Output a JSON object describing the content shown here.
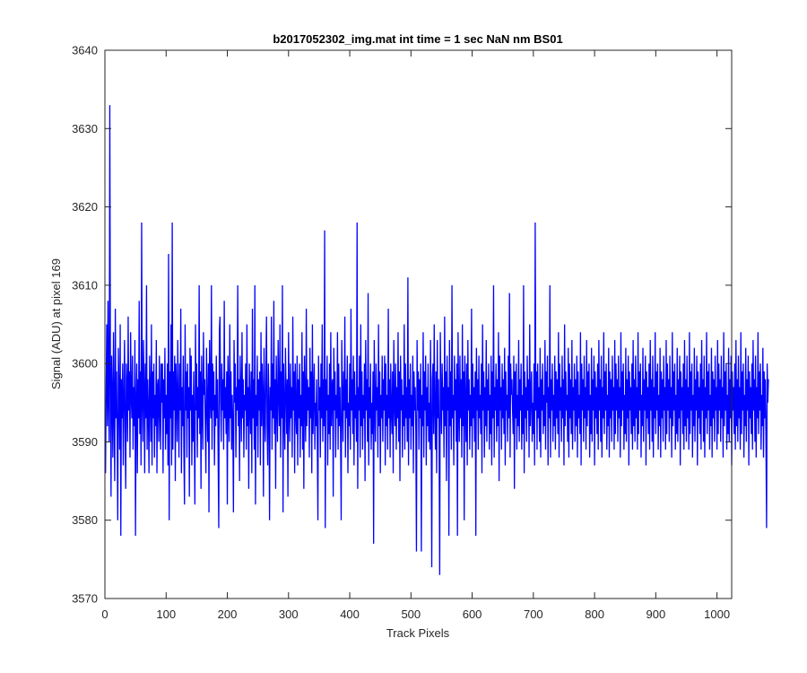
{
  "chart_data": {
    "type": "line",
    "title": "b2017052302_img.mat int time = 1 sec  NaN nm BS01",
    "xlabel": "Track Pixels",
    "ylabel": "Signal (ADU) at pixel 169",
    "xlim": [
      0,
      1024
    ],
    "ylim": [
      3570,
      3640
    ],
    "xticks": [
      0,
      100,
      200,
      300,
      400,
      500,
      600,
      700,
      800,
      900,
      1000
    ],
    "yticks": [
      3570,
      3580,
      3590,
      3600,
      3610,
      3620,
      3630,
      3640
    ],
    "grid": false,
    "legend": "none",
    "colors": {
      "line": "#0000ff",
      "axes": "#262626"
    },
    "series": [
      {
        "x_start": 1,
        "x_step": 1,
        "values": [
          3586,
          3597,
          3605,
          3592,
          3608,
          3595,
          3590,
          3633,
          3599,
          3583,
          3601,
          3596,
          3588,
          3604,
          3594,
          3585,
          3607,
          3593,
          3599,
          3591,
          3580,
          3602,
          3596,
          3589,
          3605,
          3578,
          3598,
          3593,
          3600,
          3587,
          3595,
          3603,
          3592,
          3584,
          3600,
          3597,
          3590,
          3606,
          3594,
          3599,
          3588,
          3604,
          3596,
          3593,
          3601,
          3589,
          3597,
          3592,
          3603,
          3578,
          3595,
          3600,
          3586,
          3598,
          3593,
          3608,
          3591,
          3599,
          3587,
          3618,
          3595,
          3590,
          3603,
          3597,
          3586,
          3600,
          3593,
          3610,
          3589,
          3598,
          3594,
          3586,
          3601,
          3596,
          3590,
          3605,
          3587,
          3599,
          3593,
          3600,
          3588,
          3596,
          3592,
          3603,
          3586,
          3597,
          3598,
          3590,
          3601,
          3594,
          3589,
          3600,
          3595,
          3600,
          3586,
          3598,
          3593,
          3602,
          3589,
          3596,
          3591,
          3600,
          3587,
          3614,
          3580,
          3599,
          3593,
          3605,
          3587,
          3618,
          3589,
          3599,
          3594,
          3601,
          3585,
          3600,
          3596,
          3590,
          3603,
          3595,
          3588,
          3600,
          3594,
          3607,
          3586,
          3597,
          3592,
          3601,
          3589,
          3582,
          3605,
          3594,
          3599,
          3588,
          3600,
          3593,
          3597,
          3583,
          3602,
          3594,
          3601,
          3587,
          3596,
          3590,
          3599,
          3592,
          3582,
          3605,
          3594,
          3600,
          3588,
          3597,
          3593,
          3610,
          3591,
          3599,
          3584,
          3601,
          3595,
          3589,
          3604,
          3596,
          3598,
          3592,
          3586,
          3602,
          3595,
          3590,
          3600,
          3581,
          3603,
          3596,
          3593,
          3610,
          3589,
          3600,
          3594,
          3599,
          3587,
          3596,
          3592,
          3601,
          3593,
          3598,
          3588,
          3579,
          3604,
          3606,
          3595,
          3590,
          3600,
          3594,
          3598,
          3589,
          3608,
          3593,
          3597,
          3591,
          3599,
          3582,
          3601,
          3596,
          3590,
          3605,
          3593,
          3599,
          3589,
          3596,
          3592,
          3581,
          3603,
          3595,
          3600,
          3588,
          3597,
          3594,
          3610,
          3592,
          3598,
          3585,
          3601,
          3596,
          3590,
          3604,
          3593,
          3598,
          3588,
          3596,
          3594,
          3600,
          3589,
          3605,
          3592,
          3597,
          3584,
          3600,
          3595,
          3591,
          3599,
          3586,
          3607,
          3593,
          3598,
          3589,
          3610,
          3582,
          3596,
          3592,
          3601,
          3588,
          3598,
          3594,
          3599,
          3587,
          3604,
          3592,
          3600,
          3596,
          3583,
          3602,
          3594,
          3590,
          3599,
          3606,
          3592,
          3587,
          3600,
          3595,
          3580,
          3597,
          3594,
          3606,
          3589,
          3600,
          3593,
          3608,
          3591,
          3598,
          3584,
          3601,
          3595,
          3590,
          3603,
          3596,
          3592,
          3605,
          3588,
          3599,
          3593,
          3610,
          3581,
          3600,
          3594,
          3589,
          3602,
          3597,
          3591,
          3598,
          3583,
          3604,
          3595,
          3590,
          3600,
          3593,
          3597,
          3588,
          3606,
          3594,
          3599,
          3586,
          3600,
          3594,
          3591,
          3601,
          3587,
          3598,
          3593,
          3600,
          3588,
          3596,
          3592,
          3604,
          3589,
          3599,
          3584,
          3601,
          3595,
          3590,
          3607,
          3592,
          3598,
          3594,
          3597,
          3588,
          3602,
          3593,
          3599,
          3586,
          3605,
          3591,
          3596,
          3600,
          3589,
          3595,
          3592,
          3598,
          3590,
          3580,
          3601,
          3594,
          3597,
          3588,
          3600,
          3593,
          3605,
          3590,
          3598,
          3592,
          3617,
          3579,
          3598,
          3594,
          3601,
          3587,
          3596,
          3591,
          3600,
          3589,
          3604,
          3592,
          3597,
          3598,
          3583,
          3602,
          3594,
          3599,
          3588,
          3596,
          3593,
          3604,
          3589,
          3600,
          3592,
          3597,
          3591,
          3580,
          3603,
          3596,
          3590,
          3599,
          3594,
          3606,
          3588,
          3598,
          3593,
          3601,
          3586,
          3595,
          3592,
          3600,
          3589,
          3607,
          3594,
          3598,
          3591,
          3601,
          3587,
          3599,
          3593,
          3596,
          3590,
          3618,
          3584,
          3597,
          3594,
          3601,
          3588,
          3605,
          3592,
          3599,
          3589,
          3596,
          3593,
          3600,
          3585,
          3603,
          3594,
          3598,
          3590,
          3609,
          3587,
          3597,
          3593,
          3600,
          3589,
          3595,
          3591,
          3599,
          3577,
          3603,
          3595,
          3590,
          3600,
          3594,
          3597,
          3588,
          3605,
          3592,
          3599,
          3586,
          3596,
          3593,
          3601,
          3590,
          3598,
          3594,
          3601,
          3587,
          3600,
          3592,
          3596,
          3589,
          3607,
          3593,
          3598,
          3588,
          3600,
          3594,
          3591,
          3599,
          3586,
          3603,
          3595,
          3592,
          3600,
          3589,
          3597,
          3593,
          3604,
          3590,
          3599,
          3585,
          3601,
          3594,
          3598,
          3588,
          3596,
          3592,
          3605,
          3589,
          3600,
          3593,
          3597,
          3590,
          3611,
          3587,
          3598,
          3593,
          3600,
          3589,
          3596,
          3592,
          3601,
          3586,
          3599,
          3594,
          3597,
          3591,
          3576,
          3603,
          3594,
          3599,
          3589,
          3598,
          3593,
          3600,
          3576,
          3596,
          3592,
          3604,
          3588,
          3599,
          3594,
          3601,
          3587,
          3597,
          3592,
          3600,
          3590,
          3595,
          3589,
          3603,
          3593,
          3574,
          3598,
          3600,
          3591,
          3605,
          3594,
          3589,
          3599,
          3586,
          3603,
          3593,
          3598,
          3590,
          3573,
          3604,
          3596,
          3591,
          3600,
          3594,
          3597,
          3588,
          3606,
          3592,
          3599,
          3585,
          3601,
          3594,
          3597,
          3578,
          3603,
          3592,
          3599,
          3589,
          3610,
          3593,
          3596,
          3587,
          3601,
          3594,
          3598,
          3590,
          3600,
          3578,
          3604,
          3595,
          3590,
          3601,
          3593,
          3598,
          3588,
          3605,
          3592,
          3599,
          3580,
          3601,
          3595,
          3590,
          3600,
          3587,
          3603,
          3594,
          3598,
          3589,
          3596,
          3592,
          3607,
          3588,
          3600,
          3593,
          3597,
          3590,
          3599,
          3578,
          3602,
          3594,
          3598,
          3589,
          3601,
          3593,
          3596,
          3591,
          3600,
          3586,
          3605,
          3594,
          3599,
          3588,
          3597,
          3592,
          3603,
          3590,
          3598,
          3594,
          3600,
          3589,
          3596,
          3591,
          3601,
          3587,
          3599,
          3593,
          3610,
          3588,
          3597,
          3594,
          3600,
          3590,
          3598,
          3592,
          3604,
          3585,
          3601,
          3594,
          3597,
          3589,
          3600,
          3593,
          3598,
          3591,
          3602,
          3587,
          3599,
          3594,
          3596,
          3590,
          3601,
          3593,
          3609,
          3588,
          3600,
          3596,
          3598,
          3594,
          3591,
          3601,
          3584,
          3599,
          3593,
          3600,
          3589,
          3596,
          3592,
          3603,
          3590,
          3598,
          3594,
          3600,
          3589,
          3596,
          3591,
          3610,
          3586,
          3599,
          3593,
          3597,
          3590,
          3601,
          3594,
          3598,
          3588,
          3605,
          3592,
          3596,
          3599,
          3590,
          3595,
          3591,
          3600,
          3587,
          3618,
          3594,
          3599,
          3589,
          3600,
          3593,
          3597,
          3590,
          3602,
          3588,
          3598,
          3594,
          3600,
          3591,
          3596,
          3592,
          3603,
          3589,
          3599,
          3595,
          3601,
          3587,
          3597,
          3593,
          3610,
          3588,
          3598,
          3594,
          3600,
          3590,
          3596,
          3592,
          3601,
          3589,
          3599,
          3593,
          3598,
          3591,
          3604,
          3588,
          3600,
          3594,
          3597,
          3590,
          3601,
          3593,
          3598,
          3587,
          3605,
          3592,
          3599,
          3594,
          3596,
          3590,
          3602,
          3588,
          3600,
          3593,
          3598,
          3591,
          3603,
          3589,
          3597,
          3594,
          3600,
          3590,
          3598,
          3592,
          3601,
          3588,
          3599,
          3593,
          3596,
          3591,
          3604,
          3587,
          3600,
          3594,
          3598,
          3590,
          3601,
          3593,
          3597,
          3589,
          3603,
          3592,
          3599,
          3594,
          3600,
          3588,
          3596,
          3591,
          3602,
          3590,
          3598,
          3594,
          3601,
          3587,
          3599,
          3593,
          3597,
          3591,
          3600,
          3589,
          3603,
          3594,
          3598,
          3590,
          3601,
          3588,
          3597,
          3593,
          3604,
          3591,
          3599,
          3594,
          3600,
          3589,
          3596,
          3592,
          3602,
          3588,
          3599,
          3593,
          3598,
          3590,
          3601,
          3594,
          3597,
          3589,
          3603,
          3591,
          3600,
          3594,
          3598,
          3590,
          3601,
          3593,
          3597,
          3588,
          3604,
          3592,
          3599,
          3594,
          3600,
          3589,
          3596,
          3591,
          3602,
          3590,
          3598,
          3593,
          3601,
          3587,
          3599,
          3594,
          3597,
          3591,
          3600,
          3589,
          3603,
          3592,
          3598,
          3590,
          3601,
          3593,
          3597,
          3589,
          3604,
          3591,
          3599,
          3594,
          3600,
          3588,
          3596,
          3592,
          3602,
          3590,
          3598,
          3594,
          3601,
          3587,
          3599,
          3593,
          3597,
          3591,
          3600,
          3589,
          3603,
          3594,
          3598,
          3590,
          3601,
          3588,
          3597,
          3593,
          3604,
          3591,
          3599,
          3594,
          3600,
          3589,
          3596,
          3592,
          3602,
          3588,
          3599,
          3593,
          3598,
          3590,
          3601,
          3594,
          3597,
          3589,
          3603,
          3591,
          3600,
          3594,
          3598,
          3590,
          3601,
          3593,
          3597,
          3588,
          3604,
          3592,
          3599,
          3594,
          3600,
          3589,
          3596,
          3591,
          3602,
          3590,
          3598,
          3593,
          3601,
          3587,
          3599,
          3594,
          3597,
          3591,
          3600,
          3589,
          3603,
          3592,
          3598,
          3590,
          3601,
          3593,
          3597,
          3589,
          3604,
          3591,
          3599,
          3594,
          3600,
          3588,
          3596,
          3592,
          3602,
          3590,
          3598,
          3594,
          3601,
          3587,
          3599,
          3593,
          3597,
          3591,
          3600,
          3589,
          3603,
          3594,
          3598,
          3590,
          3601,
          3588,
          3597,
          3593,
          3604,
          3591,
          3599,
          3594,
          3600,
          3589,
          3596,
          3592,
          3602,
          3588,
          3599,
          3593,
          3598,
          3590,
          3601,
          3594,
          3597,
          3589,
          3603,
          3591,
          3600,
          3594,
          3598,
          3590,
          3601,
          3593,
          3597,
          3588,
          3604,
          3592,
          3599,
          3594,
          3600,
          3589,
          3596,
          3591,
          3602,
          3590,
          3598,
          3593,
          3601,
          3587,
          3599,
          3594,
          3597,
          3591,
          3600,
          3589,
          3603,
          3592,
          3598,
          3590,
          3601,
          3593,
          3597,
          3589,
          3604,
          3591,
          3599,
          3594,
          3600,
          3588,
          3596,
          3592,
          3602,
          3590,
          3598,
          3594,
          3601,
          3587,
          3599,
          3593,
          3597,
          3591,
          3600,
          3589,
          3603,
          3594,
          3598,
          3590,
          3601,
          3588,
          3597,
          3593,
          3604,
          3591,
          3599,
          3594,
          3600,
          3589,
          3596,
          3592,
          3602,
          3588,
          3599,
          3593,
          3598,
          3590,
          3579,
          3600,
          3595,
          3598
        ]
      }
    ]
  }
}
